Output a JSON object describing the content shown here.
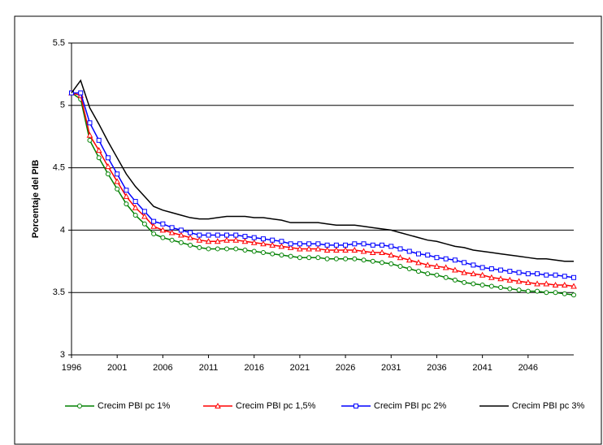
{
  "chart_data": {
    "type": "line",
    "y_label": "Porcentaje del PIB",
    "x": [
      1996,
      1997,
      1998,
      1999,
      2000,
      2001,
      2002,
      2003,
      2004,
      2005,
      2006,
      2007,
      2008,
      2009,
      2010,
      2011,
      2012,
      2013,
      2014,
      2015,
      2016,
      2017,
      2018,
      2019,
      2020,
      2021,
      2022,
      2023,
      2024,
      2025,
      2026,
      2027,
      2028,
      2029,
      2030,
      2031,
      2032,
      2033,
      2034,
      2035,
      2036,
      2037,
      2038,
      2039,
      2040,
      2041,
      2042,
      2043,
      2044,
      2045,
      2046,
      2047,
      2048,
      2049,
      2050,
      2051
    ],
    "xlim": [
      1996,
      2051
    ],
    "xticks": [
      1996,
      2001,
      2006,
      2011,
      2016,
      2021,
      2026,
      2031,
      2036,
      2041,
      2046
    ],
    "ylim": [
      3,
      5.5
    ],
    "yticks": [
      3,
      3.5,
      4,
      4.5,
      5,
      5.5
    ],
    "grid": true,
    "legend": "bottom",
    "series": [
      {
        "name": "Crecim PBI pc 1%",
        "color": "#008000",
        "marker": "circle",
        "values": [
          5.1,
          5.05,
          4.72,
          4.58,
          4.45,
          4.33,
          4.21,
          4.12,
          4.05,
          3.97,
          3.94,
          3.92,
          3.9,
          3.88,
          3.86,
          3.85,
          3.85,
          3.85,
          3.85,
          3.84,
          3.83,
          3.82,
          3.81,
          3.8,
          3.79,
          3.78,
          3.78,
          3.78,
          3.77,
          3.77,
          3.77,
          3.77,
          3.76,
          3.75,
          3.74,
          3.73,
          3.71,
          3.69,
          3.67,
          3.65,
          3.64,
          3.62,
          3.6,
          3.58,
          3.57,
          3.56,
          3.55,
          3.54,
          3.53,
          3.52,
          3.51,
          3.51,
          3.5,
          3.5,
          3.49,
          3.48
        ]
      },
      {
        "name": "Crecim PBI pc 1,5%",
        "color": "#ff0000",
        "marker": "triangle",
        "values": [
          5.1,
          5.08,
          4.76,
          4.64,
          4.51,
          4.39,
          4.27,
          4.18,
          4.11,
          4.03,
          4.0,
          3.98,
          3.96,
          3.94,
          3.92,
          3.91,
          3.91,
          3.92,
          3.92,
          3.91,
          3.9,
          3.89,
          3.88,
          3.87,
          3.86,
          3.85,
          3.85,
          3.85,
          3.84,
          3.84,
          3.84,
          3.84,
          3.83,
          3.82,
          3.82,
          3.8,
          3.78,
          3.76,
          3.74,
          3.72,
          3.71,
          3.7,
          3.68,
          3.66,
          3.65,
          3.64,
          3.62,
          3.61,
          3.6,
          3.59,
          3.58,
          3.57,
          3.57,
          3.56,
          3.56,
          3.55
        ]
      },
      {
        "name": "Crecim PBI pc 2%",
        "color": "#0000ff",
        "marker": "square",
        "values": [
          5.1,
          5.1,
          4.86,
          4.72,
          4.58,
          4.45,
          4.32,
          4.23,
          4.15,
          4.07,
          4.05,
          4.02,
          4.0,
          3.98,
          3.96,
          3.96,
          3.96,
          3.96,
          3.96,
          3.95,
          3.94,
          3.93,
          3.92,
          3.91,
          3.89,
          3.89,
          3.89,
          3.89,
          3.88,
          3.88,
          3.88,
          3.89,
          3.89,
          3.88,
          3.88,
          3.87,
          3.85,
          3.83,
          3.81,
          3.8,
          3.78,
          3.77,
          3.76,
          3.74,
          3.72,
          3.7,
          3.69,
          3.68,
          3.67,
          3.66,
          3.65,
          3.65,
          3.64,
          3.64,
          3.63,
          3.62
        ]
      },
      {
        "name": "Crecim PBI pc 3%",
        "color": "#000000",
        "marker": "none",
        "values": [
          5.1,
          5.2,
          4.98,
          4.85,
          4.71,
          4.58,
          4.45,
          4.35,
          4.27,
          4.19,
          4.16,
          4.14,
          4.12,
          4.1,
          4.09,
          4.09,
          4.1,
          4.11,
          4.11,
          4.11,
          4.1,
          4.1,
          4.09,
          4.08,
          4.06,
          4.06,
          4.06,
          4.06,
          4.05,
          4.04,
          4.04,
          4.04,
          4.03,
          4.02,
          4.01,
          4.0,
          3.98,
          3.96,
          3.94,
          3.92,
          3.91,
          3.89,
          3.87,
          3.86,
          3.84,
          3.83,
          3.82,
          3.81,
          3.8,
          3.79,
          3.78,
          3.77,
          3.77,
          3.76,
          3.75,
          3.75
        ]
      }
    ]
  }
}
